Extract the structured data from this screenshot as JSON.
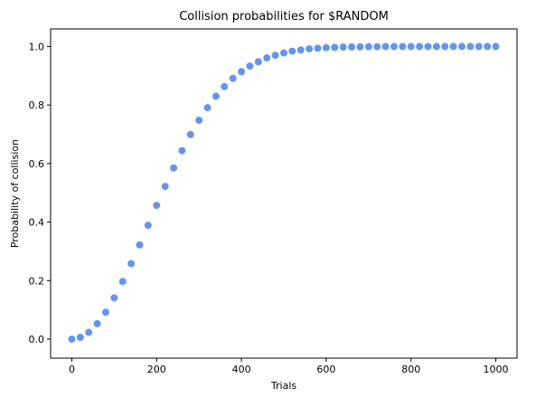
{
  "chart_data": {
    "type": "scatter",
    "title": "Collision probabilities for $RANDOM",
    "xlabel": "Trials",
    "ylabel": "Probability of collision",
    "xlim": [
      -50,
      1050
    ],
    "ylim": [
      -0.065,
      1.06
    ],
    "xticks": [
      0,
      200,
      400,
      600,
      800,
      1000
    ],
    "xtick_labels": [
      "0",
      "200",
      "400",
      "600",
      "800",
      "1000"
    ],
    "yticks": [
      0.0,
      0.2,
      0.4,
      0.6,
      0.8,
      1.0
    ],
    "ytick_labels": [
      "0.0",
      "0.2",
      "0.4",
      "0.6",
      "0.8",
      "1.0"
    ],
    "grid": false,
    "marker_color": "#6495ed",
    "series": [
      {
        "x": [
          0,
          20,
          40,
          60,
          80,
          100,
          120,
          140,
          160,
          180,
          200,
          220,
          240,
          260,
          280,
          300,
          320,
          340,
          360,
          380,
          400,
          420,
          440,
          460,
          480,
          500,
          520,
          540,
          560,
          580,
          600,
          620,
          640,
          660,
          680,
          700,
          720,
          740,
          760,
          780,
          800,
          820,
          840,
          860,
          880,
          900,
          920,
          940,
          960,
          980,
          1000
        ],
        "y": [
          0.0,
          0.006,
          0.023,
          0.053,
          0.092,
          0.141,
          0.197,
          0.258,
          0.322,
          0.389,
          0.457,
          0.522,
          0.585,
          0.644,
          0.699,
          0.748,
          0.791,
          0.83,
          0.863,
          0.891,
          0.914,
          0.933,
          0.948,
          0.961,
          0.97,
          0.978,
          0.984,
          0.988,
          0.992,
          0.994,
          0.996,
          0.997,
          0.998,
          0.9986,
          0.999,
          0.9993,
          0.9995,
          0.9997,
          0.9998,
          0.9998,
          0.9999,
          0.9999,
          0.9999,
          1.0,
          1.0,
          1.0,
          1.0,
          1.0,
          1.0,
          1.0,
          1.0
        ]
      }
    ]
  }
}
